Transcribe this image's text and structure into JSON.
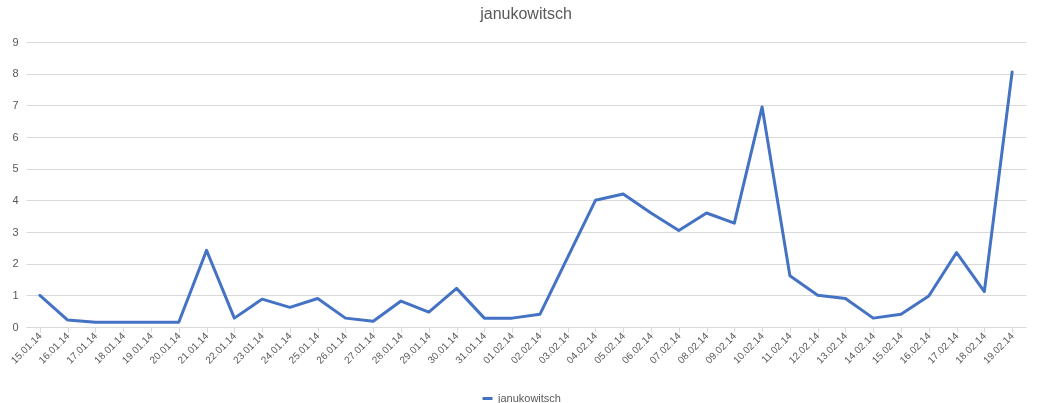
{
  "chart_data": {
    "type": "line",
    "title": "janukowitsch",
    "categories": [
      "15.01.14",
      "16.01.14",
      "17.01.14",
      "18.01.14",
      "19.01.14",
      "20.01.14",
      "21.01.14",
      "22.01.14",
      "23.01.14",
      "24.01.14",
      "25.01.14",
      "26.01.14",
      "27.01.14",
      "28.01.14",
      "29.01.14",
      "30.01.14",
      "31.01.14",
      "01.02.14",
      "02.02.14",
      "03.02.14",
      "04.02.14",
      "05.02.14",
      "06.02.14",
      "07.02.14",
      "08.02.14",
      "09.02.14",
      "10.02.14",
      "11.02.14",
      "12.02.14",
      "13.02.14",
      "14.02.14",
      "15.02.14",
      "16.02.14",
      "17.02.14",
      "18.02.14",
      "19.02.14"
    ],
    "series": [
      {
        "name": "janukowitsch",
        "color": "#4472c4",
        "values": [
          1.0,
          0.22,
          0.15,
          0.15,
          0.15,
          0.15,
          2.42,
          0.28,
          0.88,
          0.62,
          0.9,
          0.28,
          0.18,
          0.82,
          0.47,
          1.22,
          0.28,
          0.28,
          0.4,
          2.2,
          4.0,
          4.2,
          3.6,
          3.05,
          3.6,
          3.28,
          6.95,
          1.62,
          1.0,
          0.9,
          0.28,
          0.4,
          0.98,
          2.35,
          1.12,
          8.05
        ]
      }
    ],
    "ylim": [
      0,
      9
    ],
    "yticks": [
      0,
      1,
      2,
      3,
      4,
      5,
      6,
      7,
      8,
      9
    ],
    "grid": "y",
    "legend": "bottom",
    "marker": "none",
    "line_style": "solid"
  }
}
